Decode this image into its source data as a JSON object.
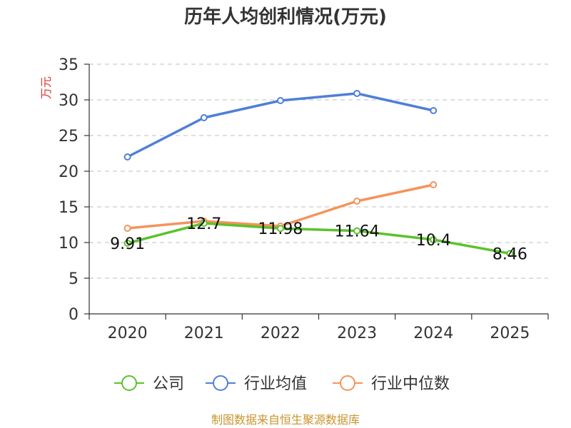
{
  "chart_data": {
    "type": "line",
    "title": "历年人均创利情况(万元)",
    "ylabel": "万元",
    "xlabel": "",
    "ylim": [
      0,
      35
    ],
    "yticks": [
      0,
      5,
      10,
      15,
      20,
      25,
      30,
      35
    ],
    "categories": [
      "2020",
      "2021",
      "2022",
      "2023",
      "2024",
      "2025"
    ],
    "series": [
      {
        "name": "公司",
        "color": "#5cc22c",
        "values": [
          9.91,
          12.7,
          11.98,
          11.64,
          10.4,
          8.46
        ],
        "labels": [
          "9.91",
          "12.7",
          "11.98",
          "11.64",
          "10.4",
          "8.46"
        ]
      },
      {
        "name": "行业均值",
        "color": "#4f7fd8",
        "values": [
          22.0,
          27.5,
          29.9,
          30.9,
          28.5,
          null
        ]
      },
      {
        "name": "行业中位数",
        "color": "#f5935c",
        "values": [
          12.0,
          13.0,
          12.3,
          15.8,
          18.1,
          null
        ]
      }
    ],
    "grid": true,
    "legend": "bottom"
  },
  "source_text": "制图数据来自恒生聚源数据库"
}
